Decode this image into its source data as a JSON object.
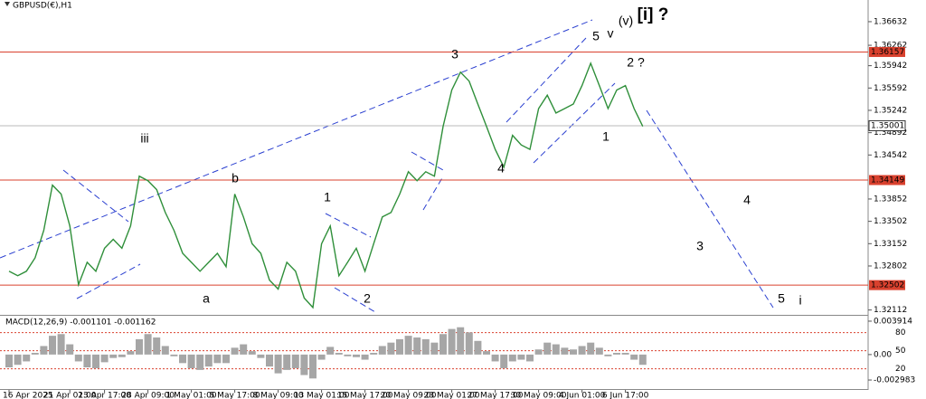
{
  "chart_data": [
    {
      "type": "line",
      "title": "GBPUSD(€),H1",
      "color": "#2f8f3a",
      "categories": [
        "16 Apr 2025",
        null,
        null,
        null,
        null,
        null,
        null,
        "21 Apr 01:00",
        null,
        null,
        null,
        "23 Apr 17:00",
        null,
        null,
        null,
        null,
        "28 Apr 09:00",
        null,
        null,
        null,
        null,
        "1 May 01:00",
        null,
        null,
        null,
        null,
        "5 May 17:00",
        null,
        null,
        null,
        null,
        "8 May 09:00",
        null,
        null,
        null,
        null,
        "13 May 01:00",
        null,
        null,
        null,
        null,
        "15 May 17:00",
        null,
        null,
        null,
        null,
        "20 May 09:00",
        null,
        null,
        null,
        null,
        "23 May 01:00",
        null,
        null,
        null,
        null,
        "27 May 17:00",
        null,
        null,
        null,
        null,
        "30 May 09:00",
        null,
        null,
        null,
        null,
        "4 Jun 01:00",
        null,
        null,
        null,
        null,
        "6 Jun 17:00",
        null,
        null
      ],
      "values": [
        1.3272,
        1.3265,
        1.3272,
        1.3293,
        1.3336,
        1.3407,
        1.3393,
        1.3343,
        1.3251,
        1.3286,
        1.3272,
        1.3308,
        1.3322,
        1.3308,
        1.3343,
        1.3421,
        1.3414,
        1.34,
        1.3364,
        1.3336,
        1.33,
        1.3286,
        1.3272,
        1.3286,
        1.33,
        1.3279,
        1.3393,
        1.3357,
        1.3315,
        1.33,
        1.3258,
        1.3244,
        1.3286,
        1.3272,
        1.323,
        1.3215,
        1.3315,
        1.3343,
        1.3265,
        1.3286,
        1.3308,
        1.3272,
        1.3315,
        1.3357,
        1.3364,
        1.3393,
        1.3428,
        1.3414,
        1.3428,
        1.3421,
        1.3499,
        1.3556,
        1.3584,
        1.357,
        1.3534,
        1.3499,
        1.3463,
        1.3435,
        1.3485,
        1.347,
        1.3463,
        1.3527,
        1.3548,
        1.352,
        1.3527,
        1.3534,
        1.3563,
        1.3598,
        1.3563,
        1.3527,
        1.3556,
        1.3563,
        1.3527,
        1.3499
      ],
      "ylim": [
        1.3205,
        1.3683
      ],
      "yticks": [
        1.36632,
        1.36262,
        1.35942,
        1.35592,
        1.35242,
        1.34892,
        1.34542,
        1.33852,
        1.33502,
        1.33152,
        1.32802,
        1.32112
      ],
      "levels": [
        {
          "value": 1.36157,
          "color": "#d9412e"
        },
        {
          "value": 1.34149,
          "color": "#d9412e"
        },
        {
          "value": 1.32502,
          "color": "#d9412e"
        }
      ],
      "current_price": 1.35001,
      "annotations": [
        {
          "text": "[i] ?",
          "color": "#2e8b2e"
        },
        {
          "text": "(v)",
          "color": "#5b3fb0"
        },
        {
          "text": "v",
          "color": "#d040d0"
        },
        {
          "text": "5",
          "color": "#111111"
        },
        {
          "text": "2 ?",
          "color": "#111111"
        },
        {
          "text": "3",
          "color": "#111111"
        },
        {
          "text": "1",
          "color": "#111111"
        },
        {
          "text": "4",
          "color": "#111111"
        },
        {
          "text": "iii",
          "color": "#d040d0"
        },
        {
          "text": "b",
          "color": "#111111"
        },
        {
          "text": "1",
          "color": "#111111"
        },
        {
          "text": "2",
          "color": "#111111"
        },
        {
          "text": "a",
          "color": "#111111"
        },
        {
          "text": "4",
          "color": "#111111"
        },
        {
          "text": "3",
          "color": "#111111"
        },
        {
          "text": "5",
          "color": "#111111"
        },
        {
          "text": "i",
          "color": "#d040d0"
        }
      ]
    },
    {
      "type": "bar",
      "title": "MACD(12,26,9) -0.001101 -0.001162",
      "color": "#a6a6a6",
      "values": [
        -0.0015,
        -0.0012,
        -0.0008,
        0.0002,
        0.001,
        0.0022,
        0.0024,
        0.0012,
        -0.0008,
        -0.0015,
        -0.0016,
        -0.0009,
        -0.0004,
        -0.0003,
        0.0004,
        0.0018,
        0.0024,
        0.002,
        0.001,
        -0.0002,
        -0.001,
        -0.0016,
        -0.0018,
        -0.0014,
        -0.001,
        -0.001,
        0.0008,
        0.0012,
        0.0004,
        -0.0004,
        -0.0014,
        -0.0022,
        -0.0018,
        -0.0016,
        -0.0024,
        -0.0028,
        -0.0006,
        0.0009,
        0.0002,
        -0.0002,
        -0.0003,
        -0.0006,
        0.0002,
        0.001,
        0.0014,
        0.0018,
        0.0022,
        0.002,
        0.0018,
        0.0014,
        0.0024,
        0.003,
        0.0032,
        0.0026,
        0.0016,
        0.0004,
        -0.0008,
        -0.0016,
        -0.0008,
        -0.0006,
        -0.0008,
        0.0006,
        0.0014,
        0.0012,
        0.0008,
        0.0006,
        0.001,
        0.0014,
        0.0008,
        -0.0002,
        0.0002,
        0.0002,
        -0.0006,
        -0.0012
      ],
      "ylim": [
        -0.00404,
        0.00444
      ],
      "yticks": [
        0.003914,
        {
          "value": 0,
          "label": "0.00"
        },
        -0.002983
      ],
      "y2lim": [
        -13.5,
        106.5
      ],
      "y2ticks": [
        80,
        50,
        20
      ],
      "level_color": "#d9412e"
    }
  ]
}
